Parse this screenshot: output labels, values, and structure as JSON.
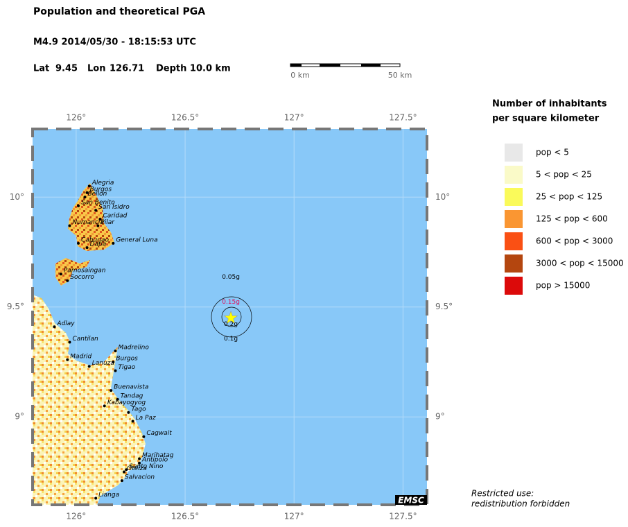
{
  "header": {
    "title": "Population and theoretical PGA",
    "event": "M4.9  2014/05/30 - 18:15:53 UTC",
    "lat_label": "Lat",
    "lat": 9.45,
    "lon_label": "Lon",
    "lon": 126.71,
    "depth": "Depth  10.0 km"
  },
  "scale": {
    "start": "0 km",
    "end": "50 km"
  },
  "map": {
    "xlim": [
      125.8,
      127.61
    ],
    "ylim": [
      8.6,
      10.31
    ],
    "xticks": [
      {
        "value": 126,
        "label": "126°"
      },
      {
        "value": 126.5,
        "label": "126.5°"
      },
      {
        "value": 127,
        "label": "127°"
      },
      {
        "value": 127.5,
        "label": "127.5°"
      }
    ],
    "yticks": [
      {
        "value": 10,
        "label": "10°"
      },
      {
        "value": 9.5,
        "label": "9.5°"
      },
      {
        "value": 9,
        "label": "9°"
      }
    ],
    "pga_labels": [
      "0.05g",
      "0.15g",
      "0.2g",
      "0.1g"
    ],
    "places": [
      {
        "name": "Alegria",
        "lon": 126.06,
        "lat": 10.05
      },
      {
        "name": "Burgos",
        "lon": 126.05,
        "lat": 10.02
      },
      {
        "name": "Bellon",
        "lon": 126.04,
        "lat": 10.0
      },
      {
        "name": "San Benito",
        "lon": 126.01,
        "lat": 9.96
      },
      {
        "name": "San Isidro",
        "lon": 126.09,
        "lat": 9.94
      },
      {
        "name": "Caridad",
        "lon": 126.11,
        "lat": 9.9
      },
      {
        "name": "Numancia",
        "lon": 125.97,
        "lat": 9.87
      },
      {
        "name": "Pilar",
        "lon": 126.1,
        "lat": 9.87
      },
      {
        "name": "Cabugao",
        "lon": 126.01,
        "lat": 9.79
      },
      {
        "name": "Dapa",
        "lon": 126.05,
        "lat": 9.77
      },
      {
        "name": "General Luna",
        "lon": 126.17,
        "lat": 9.79
      },
      {
        "name": "Pamosaingan",
        "lon": 125.93,
        "lat": 9.65
      },
      {
        "name": "Socorro",
        "lon": 125.96,
        "lat": 9.62
      },
      {
        "name": "Adlay",
        "lon": 125.9,
        "lat": 9.41
      },
      {
        "name": "Cantilan",
        "lon": 125.97,
        "lat": 9.34
      },
      {
        "name": "Madrid",
        "lon": 125.96,
        "lat": 9.26
      },
      {
        "name": "Lanuza",
        "lon": 126.06,
        "lat": 9.23
      },
      {
        "name": "Madrelino",
        "lon": 126.18,
        "lat": 9.3
      },
      {
        "name": "Burgos",
        "lon": 126.17,
        "lat": 9.25
      },
      {
        "name": "Tigao",
        "lon": 126.18,
        "lat": 9.21
      },
      {
        "name": "Buenavista",
        "lon": 126.16,
        "lat": 9.12
      },
      {
        "name": "Tandag",
        "lon": 126.19,
        "lat": 9.08
      },
      {
        "name": "Kabayogyog",
        "lon": 126.13,
        "lat": 9.05
      },
      {
        "name": "Tago",
        "lon": 126.24,
        "lat": 9.02
      },
      {
        "name": "La Paz",
        "lon": 126.26,
        "lat": 8.98
      },
      {
        "name": "Cagwait",
        "lon": 126.31,
        "lat": 8.91
      },
      {
        "name": "Marihatag",
        "lon": 126.29,
        "lat": 8.81
      },
      {
        "name": "Antipolo",
        "lon": 126.29,
        "lat": 8.79
      },
      {
        "name": "Santo Nino",
        "lon": 126.23,
        "lat": 8.76
      },
      {
        "name": "Oteiza",
        "lon": 126.22,
        "lat": 8.75
      },
      {
        "name": "Salvacion",
        "lon": 126.21,
        "lat": 8.71
      },
      {
        "name": "Lianga",
        "lon": 126.09,
        "lat": 8.63
      }
    ],
    "credit": "EMSC"
  },
  "legend": {
    "title": [
      "Number of inhabitants",
      "per square kilometer"
    ],
    "items": [
      {
        "label": "pop < 5",
        "color": "#e8e8e8"
      },
      {
        "label": "5 < pop < 25",
        "color": "#fafac8"
      },
      {
        "label": "25 < pop < 125",
        "color": "#fafa5a"
      },
      {
        "label": "125 < pop < 600",
        "color": "#fa9632"
      },
      {
        "label": "600 < pop < 3000",
        "color": "#fa5014"
      },
      {
        "label": "3000 < pop < 15000",
        "color": "#b4460f"
      },
      {
        "label": "pop > 15000",
        "color": "#dc0a0a"
      }
    ]
  },
  "notice": [
    "Restricted use:",
    "redistribution forbidden"
  ]
}
